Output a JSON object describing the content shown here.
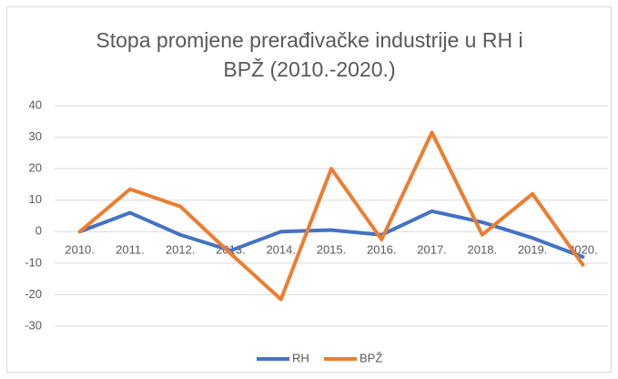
{
  "chart_data": {
    "type": "line",
    "title": "Stopa promjene prerađivačke industrije u RH i BPŽ (2010.-2020.)",
    "categories": [
      "2010.",
      "2011.",
      "2012.",
      "2013.",
      "2014.",
      "2015.",
      "2016.",
      "2017.",
      "2018.",
      "2019.",
      "2020."
    ],
    "series": [
      {
        "name": "RH",
        "color": "#4472c4",
        "values": [
          0,
          6,
          -1,
          -6,
          0,
          0.5,
          -1,
          6.5,
          3,
          -2,
          -8
        ]
      },
      {
        "name": "BPŽ",
        "color": "#ed7d31",
        "values": [
          0,
          13.5,
          8,
          -7,
          -21.5,
          20,
          -2.5,
          31.5,
          -1,
          12,
          -10.5
        ]
      }
    ],
    "ylim": [
      -30,
      40
    ],
    "yticks": [
      -30,
      -20,
      -10,
      0,
      10,
      20,
      30,
      40
    ],
    "grid": true,
    "legend": "bottom"
  }
}
